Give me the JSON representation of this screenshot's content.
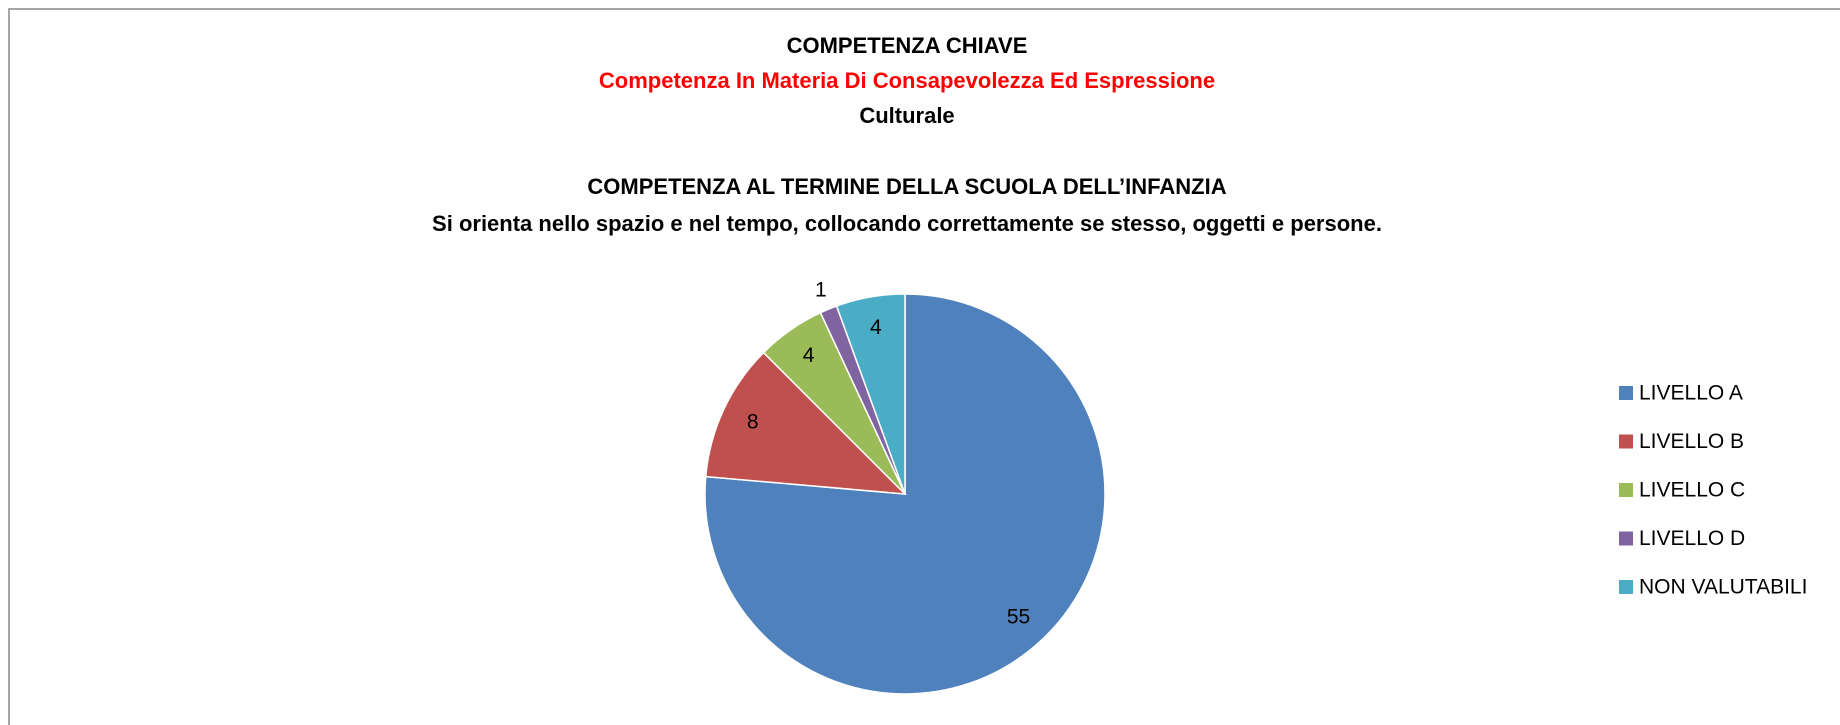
{
  "chart_data": {
    "type": "pie",
    "title_lines": [
      {
        "text": "COMPETENZA CHIAVE",
        "color": "#000000"
      },
      {
        "text": "Competenza In Materia Di Consapevolezza Ed Espressione",
        "color": "#ff0000"
      },
      {
        "text": "Culturale",
        "color": "#000000"
      },
      {
        "text": "COMPETENZA AL TERMINE DELLA SCUOLA DELL’INFANZIA",
        "color": "#000000"
      },
      {
        "text": "Si orienta nello spazio e nel tempo, collocando correttamente se stesso, oggetti e persone.",
        "color": "#000000"
      }
    ],
    "categories": [
      "LIVELLO A",
      "LIVELLO B",
      "LIVELLO C",
      "LIVELLO D",
      "NON VALUTABILI"
    ],
    "values": [
      55,
      8,
      4,
      1,
      4
    ],
    "colors": [
      "#4f81bd",
      "#c0504d",
      "#9bbb59",
      "#8064a2",
      "#4bacc6"
    ],
    "legend": "right"
  }
}
